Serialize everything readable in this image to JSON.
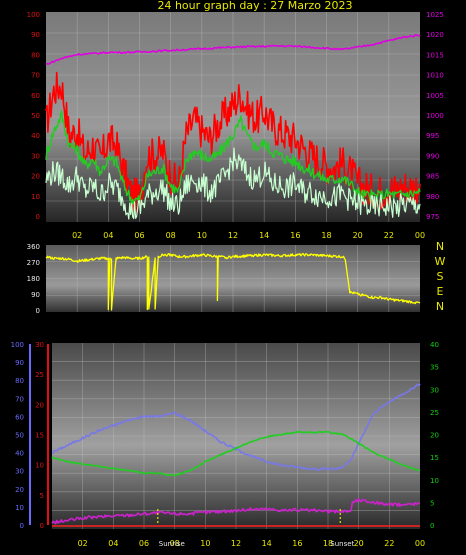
{
  "title": "24 hour graph day : 27 Marzo 2023",
  "colors": {
    "title": "#e8e800",
    "left_axis": "#e01010",
    "right_axis_pressure": "#e000e0",
    "direction_axis": "#e8e800",
    "bottom_left_outer": "#6a6aff",
    "bottom_left_inner": "#e01010",
    "bottom_right": "#10d010",
    "ticks_x": "#e8e800",
    "wind_gust": "#ff0000",
    "wind_avg": "#22cc22",
    "wind_speed": "#c8ffd0",
    "pressure": "#e000e0",
    "direction": "#ffff00",
    "humidity": "#7878e8",
    "temperature": "#22cc22",
    "dewpoint": "#cc22cc",
    "sun": "#e8e800"
  },
  "chart_data": [
    {
      "type": "line",
      "panel": "wind-pressure",
      "x_ticks": [
        "02",
        "04",
        "06",
        "08",
        "10",
        "12",
        "14",
        "16",
        "18",
        "20",
        "22",
        "00"
      ],
      "x_range": [
        0,
        24
      ],
      "left_axis": {
        "range": [
          0,
          100
        ],
        "ticks": [
          "0",
          "10",
          "20",
          "30",
          "40",
          "50",
          "60",
          "70",
          "80",
          "90",
          "100"
        ]
      },
      "right_axis": {
        "range": [
          975,
          1025
        ],
        "ticks": [
          "975",
          "980",
          "985",
          "990",
          "995",
          "1000",
          "1005",
          "1010",
          "1015",
          "1020",
          "1025"
        ]
      },
      "grid": true,
      "series": [
        {
          "key": "gust",
          "axis": "left",
          "x": [
            0,
            0.5,
            1,
            1.5,
            2,
            2.5,
            3,
            3.5,
            4,
            4.5,
            5,
            5.5,
            6,
            6.5,
            7,
            7.5,
            8,
            8.5,
            9,
            9.5,
            10,
            10.5,
            11,
            11.5,
            12,
            12.5,
            13,
            13.5,
            14,
            14.5,
            15,
            15.5,
            16,
            16.5,
            17,
            17.5,
            18,
            18.5,
            19,
            19.5,
            20,
            20.5,
            21,
            21.5,
            22,
            22.5,
            23,
            23.5,
            24
          ],
          "values": [
            45,
            62,
            65,
            40,
            42,
            30,
            35,
            28,
            38,
            35,
            22,
            10,
            10,
            30,
            30,
            32,
            20,
            15,
            40,
            48,
            42,
            38,
            45,
            50,
            55,
            60,
            52,
            48,
            52,
            45,
            42,
            40,
            38,
            34,
            30,
            28,
            25,
            24,
            26,
            22,
            16,
            14,
            12,
            12,
            14,
            13,
            15,
            14,
            16
          ]
        },
        {
          "key": "avg",
          "axis": "left",
          "x": [
            0,
            0.5,
            1,
            1.5,
            2,
            2.5,
            3,
            3.5,
            4,
            4.5,
            5,
            5.5,
            6,
            6.5,
            7,
            7.5,
            8,
            8.5,
            9,
            9.5,
            10,
            10.5,
            11,
            11.5,
            12,
            12.5,
            13,
            13.5,
            14,
            14.5,
            15,
            15.5,
            16,
            16.5,
            17,
            17.5,
            18,
            18.5,
            19,
            19.5,
            20,
            20.5,
            21,
            21.5,
            22,
            22.5,
            23,
            23.5,
            24
          ],
          "values": [
            30,
            42,
            50,
            35,
            33,
            25,
            28,
            22,
            28,
            27,
            15,
            8,
            8,
            20,
            22,
            24,
            15,
            12,
            28,
            32,
            30,
            28,
            30,
            35,
            40,
            47,
            38,
            34,
            36,
            32,
            30,
            28,
            27,
            24,
            22,
            20,
            18,
            18,
            19,
            16,
            12,
            10,
            10,
            10,
            11,
            10,
            11,
            11,
            12
          ]
        },
        {
          "key": "speed",
          "axis": "left",
          "x": [
            0,
            0.5,
            1,
            1.5,
            2,
            2.5,
            3,
            3.5,
            4,
            4.5,
            5,
            5.5,
            6,
            6.5,
            7,
            7.5,
            8,
            8.5,
            9,
            9.5,
            10,
            10.5,
            11,
            11.5,
            12,
            12.5,
            13,
            13.5,
            14,
            14.5,
            15,
            15.5,
            16,
            16.5,
            17,
            17.5,
            18,
            18.5,
            19,
            19.5,
            20,
            20.5,
            21,
            21.5,
            22,
            22.5,
            23,
            23.5,
            24
          ],
          "values": [
            18,
            22,
            20,
            15,
            20,
            12,
            15,
            10,
            16,
            14,
            8,
            2,
            3,
            10,
            12,
            14,
            6,
            5,
            15,
            18,
            16,
            12,
            15,
            20,
            28,
            25,
            20,
            18,
            22,
            16,
            15,
            14,
            16,
            12,
            12,
            10,
            10,
            9,
            11,
            8,
            6,
            5,
            4,
            5,
            5,
            4,
            6,
            5,
            6
          ]
        },
        {
          "key": "pressure",
          "axis": "right",
          "x": [
            0,
            1,
            2,
            3,
            4,
            5,
            6,
            7,
            8,
            9,
            10,
            11,
            12,
            13,
            14,
            15,
            16,
            17,
            18,
            19,
            20,
            21,
            22,
            23,
            24
          ],
          "values": [
            1012.5,
            1014,
            1015,
            1015.2,
            1015.5,
            1015.5,
            1015.6,
            1015.8,
            1016,
            1016.2,
            1016.4,
            1016.6,
            1016.8,
            1016.9,
            1017,
            1017.1,
            1017,
            1016.8,
            1016.5,
            1016.2,
            1016.8,
            1017.5,
            1018.4,
            1019.3,
            1019.8
          ]
        }
      ]
    },
    {
      "type": "line",
      "panel": "wind-direction",
      "x_range": [
        0,
        24
      ],
      "left_axis": {
        "range": [
          0,
          360
        ],
        "ticks": [
          "0",
          "90",
          "180",
          "270",
          "360"
        ]
      },
      "compass_labels": [
        "N",
        "W",
        "S",
        "E",
        "N"
      ],
      "grid": true,
      "series": [
        {
          "key": "direction",
          "x": [
            0,
            0.5,
            1,
            1.5,
            2,
            2.5,
            3,
            3.5,
            4,
            4,
            4.1,
            4.2,
            4.2,
            4.5,
            5,
            5.5,
            6,
            6.5,
            6.5,
            6.6,
            6.6,
            7,
            7,
            7.2,
            7.2,
            7.5,
            8,
            8.5,
            9,
            9.5,
            10,
            10.5,
            11,
            11,
            11.05,
            11.1,
            11.1,
            11.5,
            12,
            13,
            14,
            15,
            16,
            17,
            18,
            19,
            19.2,
            19.5,
            20,
            20.5,
            21,
            21.5,
            22,
            22.5,
            23,
            23.5,
            24
          ],
          "values": [
            300,
            290,
            290,
            285,
            275,
            280,
            285,
            290,
            290,
            5,
            290,
            290,
            5,
            290,
            295,
            290,
            290,
            300,
            5,
            295,
            5,
            290,
            5,
            300,
            300,
            310,
            310,
            300,
            300,
            305,
            310,
            305,
            300,
            60,
            300,
            300,
            300,
            295,
            300,
            305,
            310,
            305,
            310,
            310,
            305,
            300,
            290,
            100,
            90,
            80,
            70,
            70,
            60,
            55,
            50,
            45,
            40
          ]
        }
      ]
    },
    {
      "type": "line",
      "panel": "temp-humidity",
      "x_ticks": [
        "02",
        "04",
        "06",
        "08",
        "10",
        "12",
        "14",
        "16",
        "18",
        "20",
        "22",
        "00"
      ],
      "x_range": [
        0,
        24
      ],
      "outer_left_axis": {
        "range": [
          0,
          100
        ],
        "ticks": [
          "0",
          "10",
          "20",
          "30",
          "40",
          "50",
          "60",
          "70",
          "80",
          "90",
          "100"
        ]
      },
      "inner_left_axis": {
        "range": [
          0,
          30
        ],
        "ticks": [
          "0",
          "5",
          "10",
          "15",
          "20",
          "25",
          "30"
        ]
      },
      "right_axis": {
        "range": [
          0,
          40
        ],
        "ticks": [
          "0",
          "5",
          "10",
          "15",
          "20",
          "25",
          "30",
          "35",
          "40"
        ]
      },
      "sun_labels": [
        {
          "x": 6.9,
          "text": "Sunrise"
        },
        {
          "x": 18.8,
          "text": "Sunset"
        }
      ],
      "grid": true,
      "series": [
        {
          "key": "humidity",
          "axis": "outer_left",
          "x": [
            0,
            1,
            2,
            3,
            4,
            5,
            6,
            7,
            8,
            9,
            10,
            11,
            12,
            13,
            14,
            15,
            16,
            17,
            18,
            18.5,
            19,
            19.5,
            20,
            21,
            22,
            23,
            24
          ],
          "values": [
            40,
            44,
            48,
            52,
            55,
            58,
            60,
            60,
            62,
            58,
            52,
            46,
            42,
            38,
            35,
            33,
            32,
            31,
            31,
            31,
            32,
            36,
            45,
            62,
            68,
            73,
            78
          ]
        },
        {
          "key": "temperature",
          "axis": "right",
          "x": [
            0,
            1,
            2,
            3,
            4,
            5,
            6,
            7,
            7.5,
            8,
            9,
            10,
            11,
            12,
            13,
            14,
            15,
            16,
            17,
            18,
            19,
            20,
            21,
            22,
            23,
            24
          ],
          "values": [
            15,
            14,
            13.5,
            13,
            12.5,
            12,
            11.5,
            11.5,
            11,
            11,
            12,
            14,
            15.5,
            17,
            18.5,
            19.5,
            20,
            20.5,
            20.5,
            20.5,
            20,
            18,
            16,
            14.5,
            13,
            12
          ]
        },
        {
          "key": "dewpoint",
          "axis": "right",
          "x": [
            0,
            1,
            2,
            3,
            4,
            5,
            6,
            7,
            8,
            9,
            10,
            11,
            12,
            13,
            14,
            15,
            16,
            17,
            18,
            19,
            19.5,
            19.6,
            20,
            21,
            22,
            23,
            24
          ],
          "values": [
            0.5,
            1,
            1.5,
            1.8,
            2,
            2.2,
            2.5,
            2.7,
            2.5,
            2.5,
            2.8,
            3,
            3.2,
            3.5,
            3.5,
            3.3,
            3.3,
            3.2,
            3,
            3,
            3.2,
            5,
            5.5,
            5,
            4.5,
            4.5,
            4.8
          ]
        }
      ]
    }
  ]
}
